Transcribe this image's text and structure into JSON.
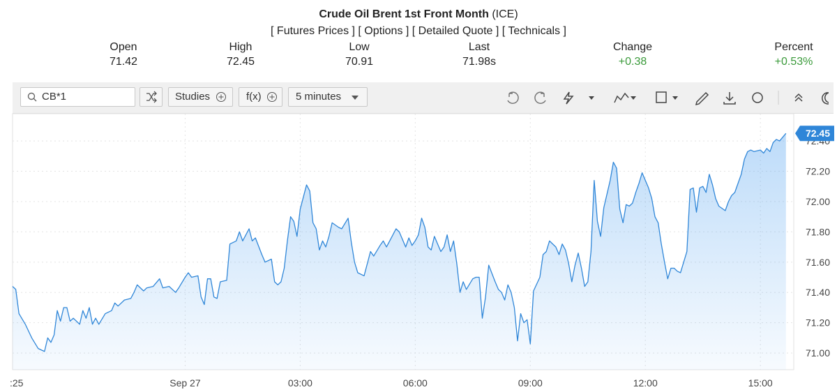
{
  "header": {
    "title": "Crude Oil Brent 1st Front Month",
    "exchange": "(ICE)",
    "links": [
      "[ Futures Prices ]",
      "[ Options ]",
      "[ Detailed Quote ]",
      "[ Technicals ]"
    ]
  },
  "stats": [
    {
      "label": "Open",
      "value": "71.42"
    },
    {
      "label": "High",
      "value": "72.45"
    },
    {
      "label": "Low",
      "value": "70.91"
    },
    {
      "label": "Last",
      "value": "71.98s"
    },
    {
      "label": "Change",
      "value": "+0.38"
    },
    {
      "label": "Percent",
      "value": "+0.53%"
    }
  ],
  "toolbar": {
    "symbol": "CB*1",
    "studies": "Studies",
    "fx": "f(x)",
    "interval": "5 minutes"
  },
  "chart_data": {
    "type": "line",
    "x": [
      0,
      1,
      2,
      4,
      6,
      8,
      10,
      11,
      12,
      13,
      14,
      15,
      16,
      17,
      18,
      19,
      21,
      22,
      23,
      24,
      25,
      26,
      27,
      29,
      31,
      32,
      33,
      35,
      37,
      38,
      39,
      41,
      42,
      44,
      46,
      47,
      49,
      51,
      52,
      54,
      55,
      56,
      58,
      59,
      60,
      61,
      62,
      63,
      64,
      65,
      67,
      68,
      70,
      71,
      72,
      74,
      75,
      76,
      78,
      79,
      81,
      82,
      83,
      84,
      85,
      86,
      87,
      88,
      89,
      90,
      92,
      93,
      94,
      95,
      96,
      97,
      98,
      99,
      100,
      102,
      103,
      105,
      106,
      107,
      108,
      110,
      111,
      112,
      113,
      115,
      116,
      117,
      118,
      120,
      121,
      123,
      124,
      125,
      126,
      127,
      128,
      129,
      130,
      131,
      132,
      134,
      135,
      136,
      137,
      138,
      139,
      140,
      141,
      142,
      144,
      145,
      146,
      147,
      148,
      149,
      151,
      152,
      153,
      154,
      155,
      156,
      157,
      158,
      159,
      160,
      161,
      162,
      163,
      165,
      166,
      167,
      168,
      170,
      171,
      172,
      173,
      174,
      175,
      176,
      177,
      178,
      179,
      180,
      181,
      182,
      183,
      184,
      185,
      187,
      188,
      189,
      190,
      191,
      192,
      193,
      194,
      195,
      196,
      197,
      199,
      200,
      201,
      202,
      203,
      204,
      205,
      206,
      207,
      208,
      209,
      211,
      212,
      213,
      214,
      215,
      216,
      217,
      218,
      219,
      220,
      221,
      223,
      224,
      225,
      226,
      227,
      228,
      229,
      230,
      231,
      232,
      234,
      235,
      236,
      237,
      238,
      239,
      240,
      242
    ],
    "series": [
      {
        "color": "#2f86d8",
        "values": [
          71.44,
          71.42,
          71.26,
          71.19,
          71.1,
          71.03,
          71.01,
          71.1,
          71.07,
          71.12,
          71.28,
          71.21,
          71.3,
          71.3,
          71.21,
          71.23,
          71.19,
          71.28,
          71.23,
          71.3,
          71.19,
          71.23,
          71.19,
          71.26,
          71.28,
          71.33,
          71.31,
          71.35,
          71.36,
          71.4,
          71.45,
          71.41,
          71.43,
          71.44,
          71.49,
          71.43,
          71.44,
          71.4,
          71.43,
          71.5,
          71.53,
          71.5,
          71.51,
          71.37,
          71.32,
          71.49,
          71.49,
          71.37,
          71.36,
          71.47,
          71.48,
          71.72,
          71.74,
          71.8,
          71.74,
          71.82,
          71.74,
          71.76,
          71.65,
          71.6,
          71.62,
          71.47,
          71.45,
          71.47,
          71.56,
          71.74,
          71.9,
          71.87,
          71.77,
          71.95,
          72.11,
          72.07,
          71.86,
          71.82,
          71.68,
          71.74,
          71.7,
          71.77,
          71.86,
          71.83,
          71.82,
          71.89,
          71.73,
          71.6,
          71.53,
          71.51,
          71.59,
          71.67,
          71.64,
          71.71,
          71.74,
          71.7,
          71.74,
          71.82,
          71.8,
          71.7,
          71.76,
          71.71,
          71.74,
          71.78,
          71.89,
          71.83,
          71.7,
          71.68,
          71.77,
          71.67,
          71.7,
          71.78,
          71.67,
          71.74,
          71.59,
          71.4,
          71.47,
          71.42,
          71.49,
          71.5,
          71.5,
          71.23,
          71.37,
          71.58,
          71.47,
          71.42,
          71.4,
          71.35,
          71.45,
          71.4,
          71.3,
          71.08,
          71.26,
          71.2,
          71.22,
          71.06,
          71.41,
          71.5,
          71.65,
          71.67,
          71.74,
          71.7,
          71.65,
          71.72,
          71.68,
          71.59,
          71.47,
          71.58,
          71.66,
          71.56,
          71.44,
          71.47,
          71.67,
          72.14,
          71.87,
          71.77,
          71.96,
          72.14,
          72.26,
          72.22,
          71.95,
          71.86,
          71.98,
          71.97,
          71.99,
          72.06,
          72.12,
          72.19,
          72.09,
          72.02,
          71.9,
          71.86,
          71.72,
          71.6,
          71.49,
          71.56,
          71.56,
          71.54,
          71.53,
          71.67,
          72.08,
          72.09,
          71.93,
          72.09,
          72.1,
          72.06,
          72.18,
          72.11,
          72.02,
          71.97,
          71.94,
          72.0,
          72.04,
          72.06,
          72.12,
          72.18,
          72.28,
          72.33,
          72.34,
          72.33,
          72.34,
          72.32,
          72.35,
          72.33,
          72.39,
          72.41,
          72.4,
          72.45
        ]
      }
    ],
    "xlim": [
      0,
      244
    ],
    "ylim": [
      70.89,
      72.58
    ],
    "xticks": [
      {
        "value": 0,
        "label": ":25"
      },
      {
        "value": 54,
        "label": "Sep 27"
      },
      {
        "value": 90,
        "label": "03:00"
      },
      {
        "value": 126,
        "label": "06:00"
      },
      {
        "value": 162,
        "label": "09:00"
      },
      {
        "value": 198,
        "label": "12:00"
      },
      {
        "value": 234,
        "label": "15:00"
      }
    ],
    "yticks": [
      {
        "value": 71,
        "label": "71.00"
      },
      {
        "value": 71.2,
        "label": "71.20"
      },
      {
        "value": 71.4,
        "label": "71.40"
      },
      {
        "value": 71.6,
        "label": "71.60"
      },
      {
        "value": 71.8,
        "label": "71.80"
      },
      {
        "value": 72,
        "label": "72.00"
      },
      {
        "value": 72.2,
        "label": "72.20"
      },
      {
        "value": 72.4,
        "label": "72.40"
      }
    ],
    "grid": true,
    "last_price": 72.45
  }
}
